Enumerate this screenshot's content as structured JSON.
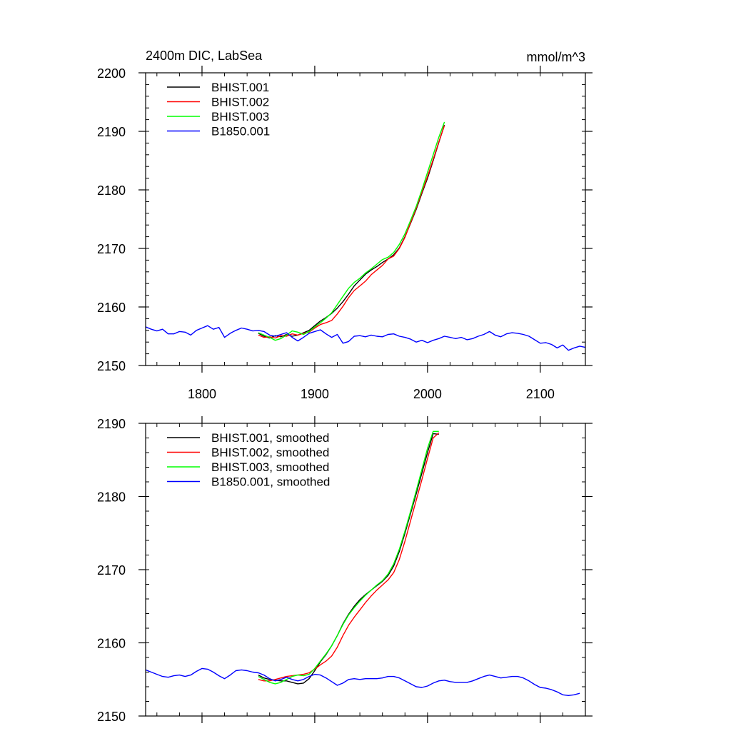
{
  "chart_data": [
    {
      "type": "line",
      "title": "2400m DIC, LabSea",
      "units": "mmol/m^3",
      "xlabel": "",
      "ylabel": "",
      "xlim": [
        1750,
        2140
      ],
      "ylim": [
        2150,
        2200
      ],
      "x_ticks": [
        1800,
        1900,
        2000,
        2100
      ],
      "x_tick_labels": [
        "1800",
        "1900",
        "2000",
        "2100"
      ],
      "y_ticks": [
        2150,
        2160,
        2170,
        2180,
        2190,
        2200
      ],
      "y_tick_labels": [
        "2150",
        "2160",
        "2170",
        "2180",
        "2190",
        "2200"
      ],
      "legend_position": "top-left",
      "grid": false,
      "series": [
        {
          "name": "BHIST.001",
          "color": "#000000",
          "x": [
            1850,
            1855,
            1860,
            1865,
            1870,
            1875,
            1880,
            1885,
            1890,
            1895,
            1900,
            1905,
            1910,
            1915,
            1920,
            1925,
            1930,
            1935,
            1940,
            1945,
            1950,
            1955,
            1960,
            1965,
            1970,
            1975,
            1980,
            1985,
            1990,
            1995,
            2000,
            2005,
            2010,
            2015
          ],
          "y": [
            2155.5,
            2155.0,
            2154.7,
            2155.1,
            2154.9,
            2155.3,
            2155.0,
            2155.2,
            2155.6,
            2156.0,
            2156.8,
            2157.6,
            2158.2,
            2158.9,
            2159.8,
            2160.9,
            2162.2,
            2163.6,
            2164.6,
            2165.6,
            2166.3,
            2166.9,
            2167.6,
            2168.2,
            2168.9,
            2170.1,
            2172.0,
            2174.3,
            2176.7,
            2179.4,
            2182.0,
            2185.0,
            2188.1,
            2191.1
          ]
        },
        {
          "name": "BHIST.002",
          "color": "#ff0000",
          "x": [
            1850,
            1855,
            1860,
            1865,
            1870,
            1875,
            1880,
            1885,
            1890,
            1895,
            1900,
            1905,
            1910,
            1915,
            1920,
            1925,
            1930,
            1935,
            1940,
            1945,
            1950,
            1955,
            1960,
            1965,
            1970,
            1975,
            1980,
            1985,
            1990,
            1995,
            2000,
            2005,
            2010,
            2015
          ],
          "y": [
            2155.2,
            2154.8,
            2154.9,
            2154.7,
            2155.1,
            2155.0,
            2155.4,
            2155.2,
            2155.5,
            2155.7,
            2156.4,
            2157.0,
            2157.3,
            2157.7,
            2158.8,
            2160.1,
            2161.6,
            2162.8,
            2163.6,
            2164.4,
            2165.5,
            2166.3,
            2167.1,
            2168.2,
            2168.7,
            2170.0,
            2171.9,
            2174.4,
            2176.9,
            2179.6,
            2182.3,
            2185.2,
            2188.2,
            2191.0
          ]
        },
        {
          "name": "BHIST.003",
          "color": "#00ff00",
          "x": [
            1850,
            1855,
            1860,
            1865,
            1870,
            1875,
            1880,
            1885,
            1890,
            1895,
            1900,
            1905,
            1910,
            1915,
            1920,
            1925,
            1930,
            1935,
            1940,
            1945,
            1950,
            1955,
            1960,
            1965,
            1970,
            1975,
            1980,
            1985,
            1990,
            1995,
            2000,
            2005,
            2010,
            2015
          ],
          "y": [
            2155.6,
            2155.2,
            2154.8,
            2154.3,
            2154.6,
            2155.2,
            2155.9,
            2155.7,
            2155.3,
            2155.8,
            2156.6,
            2157.3,
            2158.1,
            2159.0,
            2160.4,
            2161.8,
            2163.2,
            2164.2,
            2164.9,
            2165.8,
            2166.5,
            2167.3,
            2168.1,
            2168.5,
            2169.3,
            2170.7,
            2172.5,
            2174.8,
            2177.2,
            2180.0,
            2183.0,
            2186.0,
            2189.0,
            2191.6
          ]
        },
        {
          "name": "B1850.001",
          "color": "#0000ff",
          "x": [
            1750,
            1755,
            1760,
            1765,
            1770,
            1775,
            1780,
            1785,
            1790,
            1795,
            1800,
            1805,
            1810,
            1815,
            1820,
            1825,
            1830,
            1835,
            1840,
            1845,
            1850,
            1855,
            1860,
            1865,
            1870,
            1875,
            1880,
            1885,
            1890,
            1895,
            1900,
            1905,
            1910,
            1915,
            1920,
            1925,
            1930,
            1935,
            1940,
            1945,
            1950,
            1955,
            1960,
            1965,
            1970,
            1975,
            1980,
            1985,
            1990,
            1995,
            2000,
            2005,
            2010,
            2015,
            2020,
            2025,
            2030,
            2035,
            2040,
            2045,
            2050,
            2055,
            2060,
            2065,
            2070,
            2075,
            2080,
            2085,
            2090,
            2095,
            2100,
            2105,
            2110,
            2115,
            2120,
            2125,
            2130,
            2135,
            2140
          ],
          "y": [
            2156.6,
            2156.2,
            2155.9,
            2156.2,
            2155.4,
            2155.4,
            2155.8,
            2155.7,
            2155.2,
            2156.0,
            2156.4,
            2156.8,
            2156.2,
            2156.5,
            2154.8,
            2155.5,
            2156.0,
            2156.4,
            2156.2,
            2155.9,
            2156.0,
            2155.8,
            2155.2,
            2155.0,
            2155.3,
            2155.6,
            2154.8,
            2154.2,
            2154.8,
            2155.5,
            2155.8,
            2156.1,
            2155.4,
            2154.8,
            2155.3,
            2153.8,
            2154.1,
            2155.0,
            2155.1,
            2154.9,
            2155.2,
            2155.0,
            2154.9,
            2155.3,
            2155.4,
            2155.0,
            2154.8,
            2154.5,
            2154.0,
            2154.3,
            2153.9,
            2154.3,
            2154.6,
            2155.0,
            2154.8,
            2154.6,
            2154.8,
            2154.4,
            2154.6,
            2155.0,
            2155.3,
            2155.8,
            2155.2,
            2154.9,
            2155.4,
            2155.6,
            2155.5,
            2155.3,
            2155.0,
            2154.4,
            2153.8,
            2153.9,
            2153.6,
            2153.0,
            2153.5,
            2152.6,
            2153.0,
            2153.3,
            2153.1
          ]
        }
      ]
    },
    {
      "type": "line",
      "title": "",
      "xlabel": "",
      "ylabel": "",
      "xlim": [
        1750,
        2140
      ],
      "ylim": [
        2150,
        2190
      ],
      "x_ticks": [
        1800,
        1900,
        2000,
        2100
      ],
      "x_tick_labels": [],
      "y_ticks": [
        2150,
        2160,
        2170,
        2180,
        2190
      ],
      "y_tick_labels": [
        "2150",
        "2160",
        "2170",
        "2180",
        "2190"
      ],
      "legend_position": "top-left",
      "grid": false,
      "series": [
        {
          "name": "BHIST.001, smoothed",
          "color": "#000000",
          "x": [
            1850,
            1855,
            1860,
            1865,
            1870,
            1875,
            1880,
            1885,
            1890,
            1895,
            1900,
            1905,
            1910,
            1915,
            1920,
            1925,
            1930,
            1935,
            1940,
            1945,
            1950,
            1955,
            1960,
            1965,
            1970,
            1975,
            1980,
            1985,
            1990,
            1995,
            2000,
            2005,
            2010
          ],
          "y": [
            2155.6,
            2155.2,
            2155.0,
            2154.9,
            2154.8,
            2154.8,
            2154.6,
            2154.4,
            2154.5,
            2155.1,
            2156.2,
            2157.4,
            2158.4,
            2159.6,
            2161.0,
            2162.6,
            2163.9,
            2165.0,
            2165.9,
            2166.6,
            2167.2,
            2167.8,
            2168.4,
            2169.2,
            2170.5,
            2172.5,
            2175.0,
            2177.7,
            2180.4,
            2183.2,
            2186.0,
            2188.6,
            2188.5
          ]
        },
        {
          "name": "BHIST.002, smoothed",
          "color": "#ff0000",
          "x": [
            1850,
            1855,
            1860,
            1865,
            1870,
            1875,
            1880,
            1885,
            1890,
            1895,
            1900,
            1905,
            1910,
            1915,
            1920,
            1925,
            1930,
            1935,
            1940,
            1945,
            1950,
            1955,
            1960,
            1965,
            1970,
            1975,
            1980,
            1985,
            1990,
            1995,
            2000,
            2005,
            2010
          ],
          "y": [
            2155.0,
            2154.8,
            2154.8,
            2155.0,
            2155.2,
            2155.4,
            2155.5,
            2155.6,
            2155.7,
            2155.9,
            2156.4,
            2157.0,
            2157.5,
            2158.2,
            2159.4,
            2161.0,
            2162.4,
            2163.5,
            2164.5,
            2165.5,
            2166.4,
            2167.2,
            2167.9,
            2168.6,
            2169.6,
            2171.4,
            2173.9,
            2176.7,
            2179.5,
            2182.3,
            2185.2,
            2188.0,
            2188.7
          ]
        },
        {
          "name": "BHIST.003, smoothed",
          "color": "#00ff00",
          "x": [
            1850,
            1855,
            1860,
            1865,
            1870,
            1875,
            1880,
            1885,
            1890,
            1895,
            1900,
            1905,
            1910,
            1915,
            1920,
            1925,
            1930,
            1935,
            1940,
            1945,
            1950,
            1955,
            1960,
            1965,
            1970,
            1975,
            1980,
            1985,
            1990,
            1995,
            2000,
            2005,
            2010
          ],
          "y": [
            2155.4,
            2155.0,
            2154.6,
            2154.4,
            2154.6,
            2155.0,
            2155.4,
            2155.6,
            2155.5,
            2155.7,
            2156.5,
            2157.5,
            2158.5,
            2159.6,
            2161.0,
            2162.5,
            2163.8,
            2164.8,
            2165.7,
            2166.5,
            2167.2,
            2167.9,
            2168.5,
            2169.4,
            2170.8,
            2172.8,
            2175.3,
            2178.0,
            2180.8,
            2183.7,
            2186.6,
            2188.9,
            2188.9
          ]
        },
        {
          "name": "B1850.001, smoothed",
          "color": "#0000ff",
          "x": [
            1750,
            1755,
            1760,
            1765,
            1770,
            1775,
            1780,
            1785,
            1790,
            1795,
            1800,
            1805,
            1810,
            1815,
            1820,
            1825,
            1830,
            1835,
            1840,
            1845,
            1850,
            1855,
            1860,
            1865,
            1870,
            1875,
            1880,
            1885,
            1890,
            1895,
            1900,
            1905,
            1910,
            1915,
            1920,
            1925,
            1930,
            1935,
            1940,
            1945,
            1950,
            1955,
            1960,
            1965,
            1970,
            1975,
            1980,
            1985,
            1990,
            1995,
            2000,
            2005,
            2010,
            2015,
            2020,
            2025,
            2030,
            2035,
            2040,
            2045,
            2050,
            2055,
            2060,
            2065,
            2070,
            2075,
            2080,
            2085,
            2090,
            2095,
            2100,
            2105,
            2110,
            2115,
            2120,
            2125,
            2130,
            2135
          ],
          "y": [
            2156.3,
            2156.0,
            2155.7,
            2155.4,
            2155.3,
            2155.5,
            2155.6,
            2155.4,
            2155.6,
            2156.1,
            2156.5,
            2156.4,
            2156.0,
            2155.5,
            2155.1,
            2155.6,
            2156.2,
            2156.3,
            2156.2,
            2156.0,
            2155.9,
            2155.6,
            2155.1,
            2154.8,
            2155.0,
            2155.3,
            2155.0,
            2154.8,
            2155.0,
            2155.4,
            2155.7,
            2155.6,
            2155.2,
            2154.7,
            2154.2,
            2154.5,
            2155.0,
            2155.1,
            2155.0,
            2155.1,
            2155.1,
            2155.1,
            2155.2,
            2155.4,
            2155.4,
            2155.2,
            2154.8,
            2154.4,
            2154.0,
            2153.9,
            2154.1,
            2154.5,
            2154.8,
            2154.9,
            2154.7,
            2154.6,
            2154.6,
            2154.6,
            2154.8,
            2155.1,
            2155.4,
            2155.6,
            2155.4,
            2155.2,
            2155.3,
            2155.4,
            2155.4,
            2155.2,
            2154.8,
            2154.3,
            2153.9,
            2153.8,
            2153.6,
            2153.3,
            2152.9,
            2152.8,
            2152.9,
            2153.1
          ]
        }
      ]
    }
  ]
}
